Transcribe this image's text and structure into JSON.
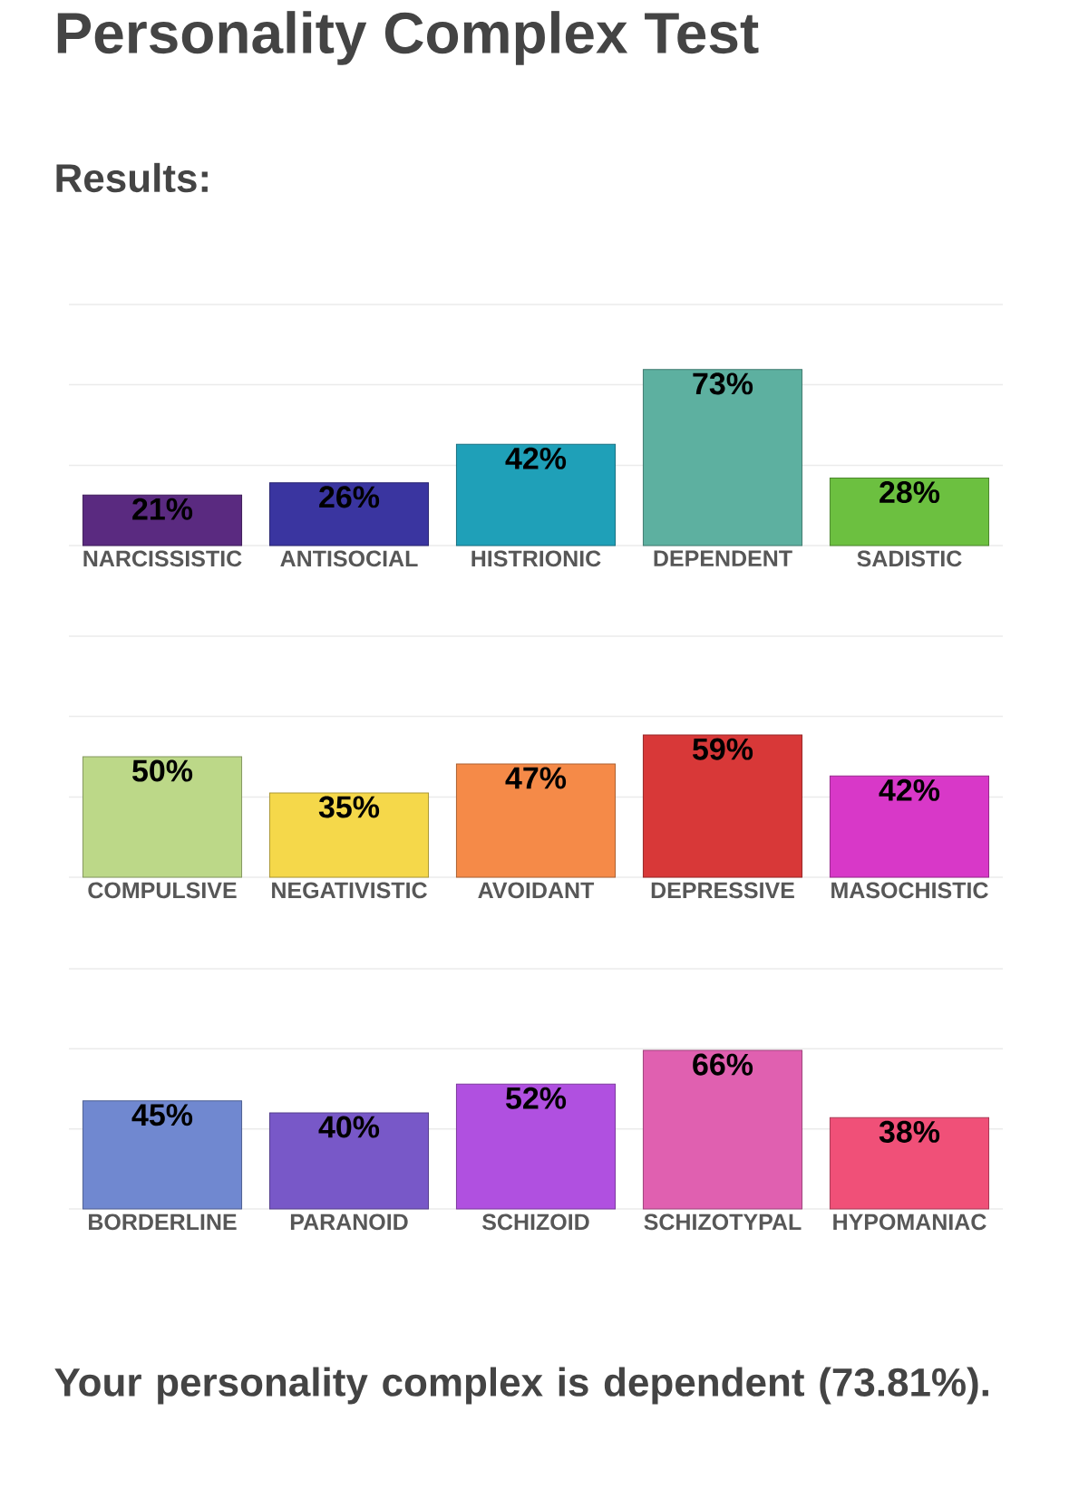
{
  "chart_data": [
    {
      "type": "bar",
      "title": "Personality Complex Test",
      "subtitle": "Results:",
      "categories": [
        "NARCISSISTIC",
        "ANTISOCIAL",
        "HISTRIONIC",
        "DEPENDENT",
        "SADISTIC"
      ],
      "values": [
        21,
        26,
        42,
        73,
        28
      ],
      "value_labels": [
        "21%",
        "26%",
        "42%",
        "73%",
        "28%"
      ],
      "colors": [
        "#5a2a80",
        "#3a35a0",
        "#1fa0b8",
        "#5db0a0",
        "#6cc040"
      ],
      "ylim": [
        0,
        100
      ],
      "yticks": [
        {
          "value": 0,
          "label": null
        },
        {
          "value": 33.3,
          "label": null
        },
        {
          "value": 66.7,
          "label": null
        },
        {
          "value": 100,
          "label": null
        }
      ],
      "grid": "y",
      "tick_labels": "x"
    },
    {
      "type": "bar",
      "categories": [
        "COMPULSIVE",
        "NEGATIVISTIC",
        "AVOIDANT",
        "DEPRESSIVE",
        "MASOCHISTIC"
      ],
      "values": [
        50,
        35,
        47,
        59,
        42
      ],
      "value_labels": [
        "50%",
        "35%",
        "47%",
        "59%",
        "42%"
      ],
      "colors": [
        "#bcd888",
        "#f5d84a",
        "#f58a48",
        "#d83838",
        "#d838c8"
      ],
      "ylim": [
        0,
        100
      ],
      "yticks": [
        {
          "value": 0,
          "label": null
        },
        {
          "value": 33.3,
          "label": null
        },
        {
          "value": 66.7,
          "label": null
        },
        {
          "value": 100,
          "label": null
        }
      ],
      "grid": "y",
      "tick_labels": "x"
    },
    {
      "type": "bar",
      "categories": [
        "BORDERLINE",
        "PARANOID",
        "SCHIZOID",
        "SCHIZOTYPAL",
        "HYPOMANIAC"
      ],
      "values": [
        45,
        40,
        52,
        66,
        38
      ],
      "value_labels": [
        "45%",
        "40%",
        "52%",
        "66%",
        "38%"
      ],
      "colors": [
        "#7088d0",
        "#7858c8",
        "#b050e0",
        "#e060b0",
        "#f05078"
      ],
      "ylim": [
        0,
        100
      ],
      "yticks": [
        {
          "value": 0,
          "label": null
        },
        {
          "value": 33.3,
          "label": null
        },
        {
          "value": 66.7,
          "label": null
        },
        {
          "value": 100,
          "label": null
        }
      ],
      "grid": "y",
      "tick_labels": "x",
      "annotations": [
        "Your personality complex is dependent (73.81%)."
      ]
    }
  ]
}
